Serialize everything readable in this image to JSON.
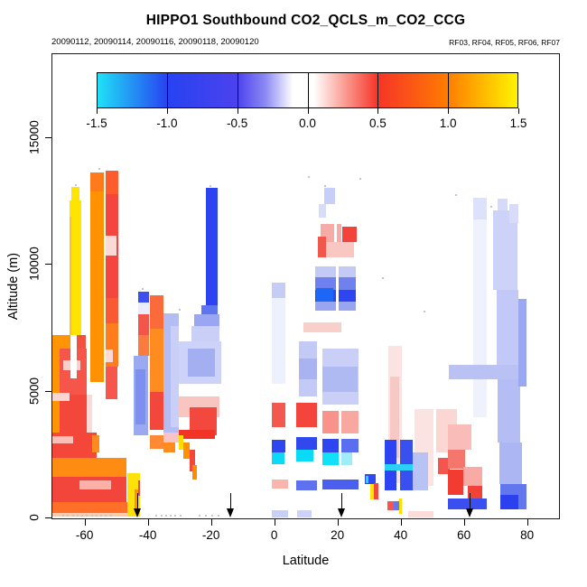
{
  "title": "HIPPO1 Southbound CO2_QCLS_m_CO2_CCG",
  "subtitle_left": "20090112, 20090114, 20090116, 20090118, 20090120",
  "subtitle_right": "RF03, RF04, RF05, RF06, RF07",
  "chart_data": {
    "type": "heatmap",
    "title": "HIPPO1 Southbound CO2_QCLS_m_CO2_CCG",
    "xlabel": "Latitude",
    "ylabel": "Altitude (m)",
    "xlim": [
      -70.5,
      90.4
    ],
    "ylim": [
      0,
      18300
    ],
    "x_ticks": [
      "-60",
      "-40",
      "-20",
      "0",
      "20",
      "40",
      "60",
      "80"
    ],
    "x_tick_values": [
      -60,
      -40,
      -20,
      0,
      20,
      40,
      60,
      80
    ],
    "y_ticks": [
      "0",
      "5000",
      "10000",
      "15000"
    ],
    "y_tick_values": [
      0,
      5000,
      10000,
      15000
    ],
    "grid": false,
    "legend_position": "top",
    "colorbar": {
      "min": -1.5,
      "max": 1.5,
      "ticks": [
        "-1.5",
        "-1.0",
        "-0.5",
        "0.0",
        "0.5",
        "1.0",
        "1.5"
      ],
      "stops": [
        [
          0.0,
          "#1FE1F7"
        ],
        [
          0.1667,
          "#2742F1"
        ],
        [
          0.3333,
          "#4C42EE"
        ],
        [
          0.4,
          "#8C8AF3"
        ],
        [
          0.465,
          "#FFFFFF"
        ],
        [
          0.515,
          "#FFFFFF"
        ],
        [
          0.58,
          "#FBA89F"
        ],
        [
          0.6667,
          "#F63428"
        ],
        [
          0.8333,
          "#FF7C00"
        ],
        [
          1.0,
          "#FFF400"
        ]
      ]
    },
    "arrows_lat": [
      -43.5,
      -14.0,
      21.1,
      61.6
    ],
    "cells": [
      [
        -70.5,
        -64.5,
        6700,
        7250,
        "#FF9405"
      ],
      [
        -64.5,
        -59.8,
        6700,
        7250,
        "#F4503F"
      ],
      [
        -70.5,
        -68.2,
        700,
        6700,
        "#FF9405"
      ],
      [
        -68.2,
        -59.5,
        4900,
        6700,
        "#F6564A"
      ],
      [
        -67.0,
        -61.5,
        5850,
        6250,
        "#FACFCB"
      ],
      [
        -64.9,
        -62.8,
        5530,
        7250,
        "#FFFFFF"
      ],
      [
        -68.2,
        -59.0,
        3400,
        4900,
        "#F4473C"
      ],
      [
        -70.5,
        -65.0,
        4650,
        4950,
        "#FAD5D1"
      ],
      [
        -59.5,
        -58.0,
        3400,
        4900,
        "#FBDAD6"
      ],
      [
        -70.5,
        -56.5,
        2400,
        3400,
        "#F5463A"
      ],
      [
        -70.5,
        -64.0,
        2950,
        3250,
        "#FBBEB8"
      ],
      [
        -58.0,
        -55.5,
        2600,
        3300,
        "#FF8A1E"
      ],
      [
        -70.5,
        -47.0,
        1650,
        2400,
        "#FF8C12"
      ],
      [
        -70.5,
        -47.0,
        650,
        1650,
        "#F2453B"
      ],
      [
        -62.0,
        -52.0,
        1150,
        1500,
        "#FBB0A8"
      ],
      [
        -70.5,
        -46.0,
        220,
        650,
        "#FF6F28"
      ],
      [
        -70.5,
        -46.0,
        80,
        220,
        "#FFC9A8"
      ],
      [
        -46.9,
        -42.8,
        80,
        1800,
        "#FFE10A"
      ],
      [
        -44.6,
        -43.2,
        380,
        1150,
        "#FF9100"
      ],
      [
        -43.4,
        -42.8,
        900,
        1500,
        "#F4473C"
      ],
      [
        -65.1,
        -61.3,
        7250,
        12550,
        "#FFE400"
      ],
      [
        -65.1,
        -64.4,
        7250,
        11900,
        "#FFC31E"
      ],
      [
        -64.6,
        -62.0,
        12550,
        13080,
        "#FFE400"
      ],
      [
        -58.6,
        -54.3,
        5400,
        13650,
        "#FF9103"
      ],
      [
        -58.6,
        -54.3,
        12900,
        13650,
        "#FF7A1A"
      ],
      [
        -53.7,
        -49.7,
        12800,
        13700,
        "#FF5C2E"
      ],
      [
        -53.7,
        -49.7,
        8700,
        12800,
        "#F4453E"
      ],
      [
        -53.7,
        -50.3,
        10350,
        11150,
        "#FBD9D5"
      ],
      [
        -53.7,
        -49.7,
        7700,
        8700,
        "#FA5A33"
      ],
      [
        -53.7,
        -49.7,
        6000,
        7700,
        "#FF7D1C"
      ],
      [
        -53.7,
        -51.3,
        6150,
        6650,
        "#FCD9D5"
      ],
      [
        -53.7,
        -49.9,
        4700,
        6000,
        "#F6564C"
      ],
      [
        -44.7,
        -40.3,
        3300,
        6400,
        "#9AA9F0"
      ],
      [
        -44.2,
        -41.2,
        3700,
        5900,
        "#7E90EE"
      ],
      [
        -43.4,
        -40.0,
        8500,
        8950,
        "#3B50EE"
      ],
      [
        -43.4,
        -40.0,
        8050,
        8500,
        "#E8ECFD"
      ],
      [
        -43.4,
        -40.0,
        7250,
        8050,
        "#F4554A"
      ],
      [
        -43.4,
        -40.0,
        6400,
        7250,
        "#FA7A40"
      ],
      [
        -39.6,
        -35.4,
        7500,
        8800,
        "#FA6A3A"
      ],
      [
        -39.6,
        -35.4,
        5000,
        7500,
        "#FF8C20"
      ],
      [
        -39.6,
        -35.4,
        3500,
        5000,
        "#F4473C"
      ],
      [
        -39.6,
        -35.4,
        2750,
        3300,
        "#FF8A33"
      ],
      [
        -35.4,
        -30.6,
        3400,
        8100,
        "#B3BCF3"
      ],
      [
        -33.0,
        -30.6,
        3600,
        7600,
        "#C9CFF7"
      ],
      [
        -35.4,
        -30.6,
        3000,
        3400,
        "#FAC3C6"
      ],
      [
        -35.4,
        -31.5,
        2600,
        3000,
        "#FF8C1C"
      ],
      [
        -30.5,
        -17.0,
        5300,
        7000,
        "#CDD3F8"
      ],
      [
        -27.5,
        -19.0,
        5600,
        6700,
        "#A4AFF2"
      ],
      [
        -21.9,
        -18.2,
        8400,
        13050,
        "#2B43F0"
      ],
      [
        -23.3,
        -18.2,
        8050,
        8400,
        "#5F74F0"
      ],
      [
        -25.5,
        -17.5,
        7600,
        8050,
        "#9AA6F1"
      ],
      [
        -26.5,
        -17.5,
        7000,
        7600,
        "#C9CFF7"
      ],
      [
        -30.5,
        -17.5,
        4000,
        4800,
        "#F9C5C1"
      ],
      [
        -27.0,
        -18.5,
        3300,
        4400,
        "#F2483E"
      ],
      [
        -30.5,
        -19.0,
        3150,
        3500,
        "#F23427"
      ],
      [
        -30.5,
        -29.0,
        2700,
        3300,
        "#FFDD00"
      ],
      [
        -29.0,
        -27.0,
        2350,
        3000,
        "#FF9100"
      ],
      [
        -27.0,
        -25.3,
        1850,
        2700,
        "#F2473A"
      ],
      [
        -26.2,
        -24.8,
        1550,
        2100,
        "#FF8C00"
      ],
      [
        -1.0,
        3.3,
        8700,
        9300,
        "#C5CCF6"
      ],
      [
        -1.0,
        3.3,
        5300,
        8700,
        "#EDF0FD"
      ],
      [
        7.5,
        13.2,
        4800,
        7000,
        "#C3CAF6"
      ],
      [
        7.5,
        13.2,
        5500,
        6300,
        "#A9B3F2"
      ],
      [
        15.0,
        26.3,
        4500,
        6700,
        "#C9CFF7"
      ],
      [
        15.0,
        26.0,
        5000,
        6000,
        "#AFBAF3"
      ],
      [
        15.5,
        19.0,
        12400,
        13050,
        "#C7CEF7"
      ],
      [
        13.7,
        16.2,
        11850,
        12400,
        "#D8DCF9"
      ],
      [
        14.5,
        21.0,
        10500,
        11600,
        "#F7ABA6"
      ],
      [
        13.5,
        16.0,
        10300,
        11100,
        "#F2574C"
      ],
      [
        18.6,
        19.4,
        10300,
        11600,
        "#FFFFFF"
      ],
      [
        21.2,
        25.8,
        10900,
        11500,
        "#F4433B"
      ],
      [
        16.0,
        25.0,
        10300,
        10900,
        "#FAC6C2"
      ],
      [
        12.6,
        25.5,
        9500,
        9950,
        "#C3CAF6"
      ],
      [
        12.6,
        25.5,
        9000,
        9500,
        "#6F81EE"
      ],
      [
        12.6,
        25.5,
        8550,
        9000,
        "#2E46F0"
      ],
      [
        12.8,
        18.3,
        8550,
        9100,
        "#1E66F5"
      ],
      [
        12.6,
        25.5,
        8200,
        8550,
        "#98A5F1"
      ],
      [
        19.3,
        20.1,
        8200,
        9950,
        "#FFFFFF"
      ],
      [
        9.0,
        21.0,
        7350,
        7750,
        "#F8CFCB"
      ],
      [
        -1.0,
        3.3,
        3600,
        4550,
        "#F2584E"
      ],
      [
        6.6,
        13.2,
        3600,
        4550,
        "#F4453C"
      ],
      [
        15.0,
        20.2,
        3350,
        4250,
        "#F8928B"
      ],
      [
        20.8,
        26.3,
        3350,
        4250,
        "#F9A8A1"
      ],
      [
        -1.0,
        3.3,
        2600,
        3100,
        "#2E46F0"
      ],
      [
        6.6,
        13.2,
        2700,
        3200,
        "#3148EE"
      ],
      [
        15.0,
        20.2,
        2600,
        3150,
        "#2E46F0"
      ],
      [
        20.8,
        26.3,
        2600,
        3150,
        "#5A6EF0"
      ],
      [
        -1.0,
        3.0,
        2150,
        2600,
        "#0ADAF6"
      ],
      [
        6.6,
        12.0,
        2250,
        2700,
        "#0ADAF6"
      ],
      [
        15.0,
        20.2,
        2100,
        2600,
        "#10E0F8"
      ],
      [
        20.8,
        24.5,
        2100,
        2600,
        "#9FEDF8"
      ],
      [
        -1.0,
        4.0,
        1200,
        1550,
        "#F9B4AE"
      ],
      [
        6.6,
        13.2,
        1100,
        1500,
        "#5E71EE"
      ],
      [
        15.0,
        26.3,
        1150,
        1550,
        "#4A5FF0"
      ],
      [
        -1.0,
        4.0,
        30,
        330,
        "#C9D0F7"
      ],
      [
        6.8,
        11.5,
        30,
        330,
        "#CDD3F8"
      ],
      [
        35.8,
        40.0,
        1400,
        6800,
        "#FBE3E1"
      ],
      [
        36.3,
        39.2,
        2400,
        5600,
        "#F8C8C4"
      ],
      [
        44.0,
        50.0,
        1300,
        4300,
        "#FBE3E1"
      ],
      [
        51.0,
        57.5,
        2600,
        4300,
        "#FBD7D4"
      ],
      [
        51.5,
        55.3,
        1750,
        2400,
        "#F4554C"
      ],
      [
        54.7,
        62.0,
        2700,
        3700,
        "#F9BCB8"
      ],
      [
        54.7,
        60.0,
        1950,
        2700,
        "#F4766C"
      ],
      [
        54.7,
        59.5,
        950,
        1950,
        "#F23B31"
      ],
      [
        59.5,
        65.5,
        1300,
        2050,
        "#F8ABA4"
      ],
      [
        61.0,
        65.5,
        800,
        1300,
        "#F24136"
      ],
      [
        54.7,
        67.0,
        360,
        800,
        "#3B4EF0"
      ],
      [
        34.6,
        38.5,
        1100,
        3100,
        "#2C44F1"
      ],
      [
        39.4,
        43.4,
        1100,
        3100,
        "#3850EE"
      ],
      [
        43.4,
        48.4,
        1100,
        2600,
        "#B9C2F4"
      ],
      [
        34.6,
        43.4,
        1900,
        2150,
        "#2BD0F5"
      ],
      [
        28.4,
        31.8,
        1350,
        1750,
        "#3148EE"
      ],
      [
        28.6,
        29.6,
        1400,
        1700,
        "#18D9F7"
      ],
      [
        30.2,
        31.2,
        750,
        1350,
        "#FFE400"
      ],
      [
        31.2,
        32.8,
        750,
        1400,
        "#F2473C"
      ],
      [
        35.4,
        37.5,
        320,
        700,
        "#F4564C"
      ],
      [
        37.5,
        39.7,
        320,
        700,
        "#6577EE"
      ],
      [
        39.3,
        40.0,
        180,
        800,
        "#FFE000"
      ],
      [
        42.0,
        50.0,
        30,
        300,
        "#FBDCDA"
      ],
      [
        62.6,
        67.0,
        4000,
        12600,
        "#EFF1FD"
      ],
      [
        62.6,
        67.0,
        11800,
        12650,
        "#DDE1FA"
      ],
      [
        55.0,
        79.5,
        5500,
        6050,
        "#BAC2F4"
      ],
      [
        69.0,
        76.6,
        9000,
        12150,
        "#CDD3F8"
      ],
      [
        70.5,
        73.5,
        12150,
        12600,
        "#D5DAF9"
      ],
      [
        70.0,
        77.0,
        6050,
        9000,
        "#C2C9F6"
      ],
      [
        70.5,
        77.5,
        3000,
        5500,
        "#B5BEF4"
      ],
      [
        71.0,
        78.0,
        1350,
        3000,
        "#ACB6F3"
      ],
      [
        77.0,
        79.4,
        5200,
        8650,
        "#9AA7F1"
      ],
      [
        74.0,
        77.0,
        11650,
        12400,
        "#D8DCF9"
      ],
      [
        71.2,
        79.5,
        350,
        1350,
        "#6276EE"
      ],
      [
        71.2,
        77.0,
        380,
        950,
        "#2B40EE"
      ]
    ],
    "track_dots": [
      [
        -67,
        110
      ],
      [
        -65.5,
        110
      ],
      [
        -64,
        110
      ],
      [
        -62.5,
        110
      ],
      [
        -61,
        110
      ],
      [
        -59.5,
        110
      ],
      [
        -58,
        110
      ],
      [
        -56.5,
        110
      ],
      [
        -55,
        110
      ],
      [
        -53.5,
        110
      ],
      [
        -52,
        110
      ],
      [
        -37.5,
        110
      ],
      [
        -36,
        110
      ],
      [
        -34.5,
        110
      ],
      [
        -33,
        110
      ],
      [
        -31.5,
        110
      ],
      [
        -30,
        110
      ],
      [
        -24,
        110
      ],
      [
        -22,
        110
      ],
      [
        -20,
        110
      ],
      [
        -18,
        110
      ],
      [
        -63,
        13150
      ],
      [
        -55.5,
        13780
      ],
      [
        -41.8,
        9060
      ],
      [
        -30.3,
        8220
      ],
      [
        -20.4,
        13120
      ],
      [
        10.6,
        13480
      ],
      [
        15.8,
        13090
      ],
      [
        26.8,
        13400
      ],
      [
        34.2,
        9480
      ],
      [
        47.3,
        8170
      ],
      [
        57.2,
        12750
      ],
      [
        68.5,
        12300
      ]
    ]
  }
}
